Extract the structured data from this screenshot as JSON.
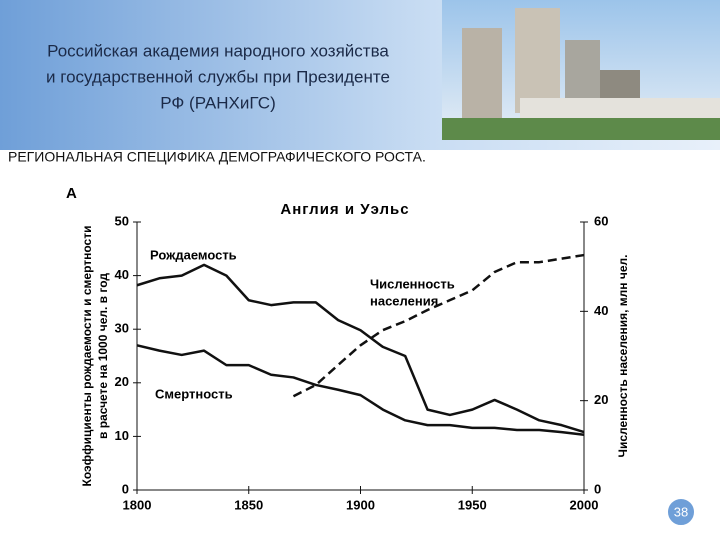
{
  "header": {
    "title_lines": [
      "Российская академия народного хозяйства",
      "и государственной службы при Президенте",
      "РФ (РАНХиГС)"
    ]
  },
  "subtitle": "РЕГИОНАЛЬНАЯ СПЕЦИФИКА ДЕМОГРАФИЧЕСКОГО РОСТА.",
  "page_number": "38",
  "chart_data": {
    "type": "line",
    "panel_label": "А",
    "title": "Англия и Уэльс",
    "y_label_lines": [
      "Коэффициенты рождаемости и смертности",
      "в расчете на 1000 чел. в год"
    ],
    "y2_label": "Численность населения, млн чел.",
    "x": [
      1800,
      1810,
      1820,
      1830,
      1840,
      1850,
      1860,
      1870,
      1880,
      1890,
      1900,
      1910,
      1920,
      1930,
      1940,
      1950,
      1960,
      1970,
      1980,
      1990,
      2000
    ],
    "series": [
      {
        "name": "Рождаемость",
        "color": "#111111",
        "dash": false,
        "values": [
          38.2,
          39.5,
          40,
          42,
          40,
          35.4,
          34.5,
          35,
          35,
          31.7,
          29.8,
          26.7,
          25,
          15,
          14,
          15,
          16.8,
          15,
          13,
          12.1,
          10.8
        ]
      },
      {
        "name": "Смертность",
        "color": "#111111",
        "dash": false,
        "values": [
          27,
          26,
          25.2,
          26,
          23.3,
          23.3,
          21.5,
          21,
          19.6,
          18.7,
          17.7,
          15,
          13,
          12.1,
          12.1,
          11.6,
          11.6,
          11.2,
          11.2,
          10.8,
          10.3
        ]
      },
      {
        "name_lines": [
          "Численность",
          "населения"
        ],
        "color": "#111111",
        "dash": true,
        "axis": "y2",
        "values": [
          null,
          null,
          null,
          null,
          null,
          null,
          null,
          21,
          23.5,
          28,
          32.4,
          35.8,
          37.8,
          40.3,
          42.5,
          44.7,
          48.8,
          51,
          51,
          51.8,
          52.6
        ]
      }
    ],
    "xlim": [
      1800,
      2000
    ],
    "xticks": [
      1800,
      1850,
      1900,
      1950,
      2000
    ],
    "ylim": [
      0,
      50
    ],
    "yticks": [
      0,
      10,
      20,
      30,
      40,
      50
    ],
    "y2lim": [
      0,
      60
    ],
    "y2ticks": [
      0,
      20,
      40,
      60
    ]
  }
}
